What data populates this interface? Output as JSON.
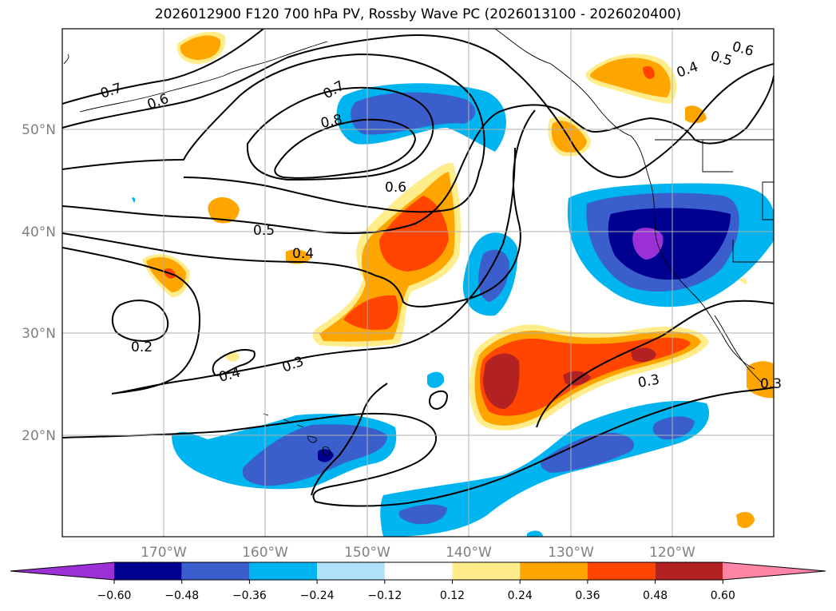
{
  "title": "2026012900 F120 700 hPa PV, Rossby Wave PC (2026013100 - 2026020400)",
  "map": {
    "lon_labels": [
      "170°W",
      "160°W",
      "150°W",
      "140°W",
      "130°W",
      "120°W"
    ],
    "lat_labels": [
      "50°N",
      "40°N",
      "30°N",
      "20°N"
    ]
  },
  "contour_labels": [
    "0.7",
    "0.6",
    "0.7",
    "0.8",
    "0.6",
    "0.5",
    "0.4",
    "0.2",
    "0.4",
    "0.3",
    "0.3",
    "0.6",
    "0.5",
    "0.4",
    "0.3"
  ],
  "colorbar": {
    "ticks": [
      "−0.60",
      "−0.48",
      "−0.36",
      "−0.24",
      "−0.12",
      "0.12",
      "0.24",
      "0.36",
      "0.48",
      "0.60"
    ],
    "colors": [
      "#9b30d6",
      "#000090",
      "#3a5fcd",
      "#00b4f0",
      "#afe2fa",
      "#ffffff",
      "#ffec8b",
      "#ffa500",
      "#ff4500",
      "#b22222",
      "#ff85a6"
    ]
  },
  "colors": {
    "frame": "#000000",
    "grid": "#b0b0b0",
    "tick_label": "#808080",
    "contour": "#000000",
    "coast": "#000000"
  }
}
